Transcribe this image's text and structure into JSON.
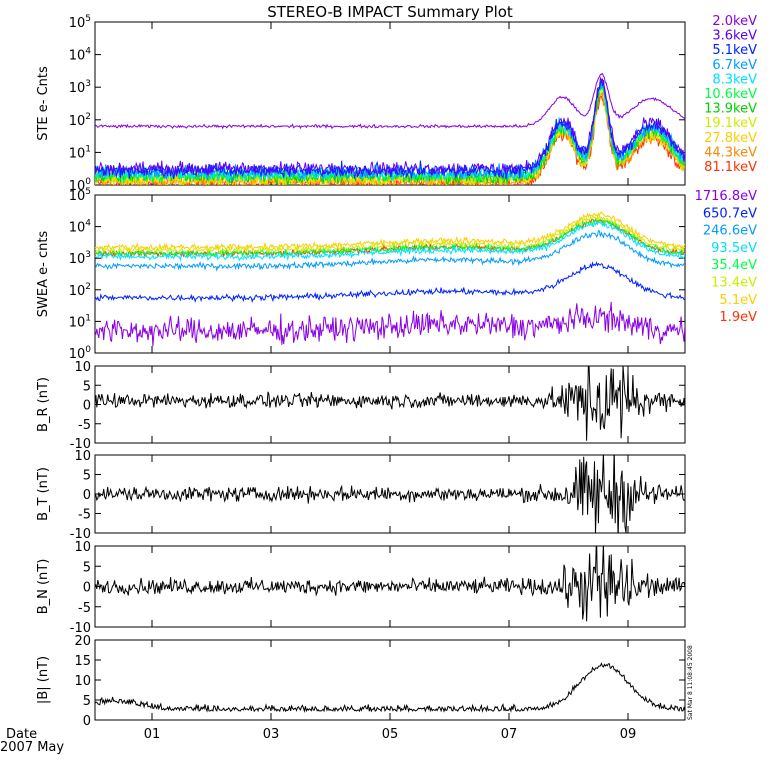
{
  "title": "STEREO-B IMPACT Summary Plot",
  "stamp": "Sat Mar  8 11:08:45 2008",
  "date_label": "Date",
  "month_label": "2007 May",
  "x_ticks": [
    "01",
    "03",
    "05",
    "07",
    "09"
  ],
  "chart_data": [
    {
      "type": "line",
      "ylabel": "STE e- Cnts",
      "yscale": "log",
      "ylim": [
        1,
        100000
      ],
      "y_ticks": [
        "10^0",
        "10^1",
        "10^2",
        "10^3",
        "10^4",
        "10^5"
      ],
      "legend": [
        {
          "label": "2.0keV",
          "color": "#8a00e6"
        },
        {
          "label": "3.6keV",
          "color": "#5a00ff"
        },
        {
          "label": "5.1keV",
          "color": "#0022ff"
        },
        {
          "label": "6.7keV",
          "color": "#009cff"
        },
        {
          "label": "8.3keV",
          "color": "#00e0ff"
        },
        {
          "label": "10.6keV",
          "color": "#00ff44"
        },
        {
          "label": "13.9keV",
          "color": "#00d000"
        },
        {
          "label": "19.1keV",
          "color": "#ccee00"
        },
        {
          "label": "27.8keV",
          "color": "#ffcc00"
        },
        {
          "label": "44.3keV",
          "color": "#ff8800"
        },
        {
          "label": "81.1keV",
          "color": "#ff3300"
        }
      ]
    },
    {
      "type": "line",
      "ylabel": "SWEA e- cnts",
      "yscale": "log",
      "ylim": [
        1,
        100000
      ],
      "y_ticks": [
        "10^0",
        "10^1",
        "10^2",
        "10^3",
        "10^4",
        "10^5"
      ],
      "legend": [
        {
          "label": "1716.8eV",
          "color": "#8a00e6"
        },
        {
          "label": "650.7eV",
          "color": "#0022ff"
        },
        {
          "label": "246.6eV",
          "color": "#009cff"
        },
        {
          "label": "93.5eV",
          "color": "#00e0ff"
        },
        {
          "label": "35.4eV",
          "color": "#00ff44"
        },
        {
          "label": "13.4eV",
          "color": "#ccee00"
        },
        {
          "label": "5.1eV",
          "color": "#ffcc00"
        },
        {
          "label": "1.9eV",
          "color": "#ff3300"
        }
      ]
    },
    {
      "type": "line",
      "ylabel": "B_R (nT)",
      "ylim": [
        -10,
        10
      ],
      "y_ticks": [
        "-10",
        "-5",
        "0",
        "5",
        "10"
      ]
    },
    {
      "type": "line",
      "ylabel": "B_T (nT)",
      "ylim": [
        -10,
        10
      ],
      "y_ticks": [
        "-10",
        "-5",
        "0",
        "5",
        "10"
      ]
    },
    {
      "type": "line",
      "ylabel": "B_N (nT)",
      "ylim": [
        -10,
        10
      ],
      "y_ticks": [
        "-10",
        "-5",
        "0",
        "5",
        "10"
      ]
    },
    {
      "type": "line",
      "ylabel": "|B| (nT)",
      "ylim": [
        0,
        20
      ],
      "y_ticks": [
        "0",
        "5",
        "10",
        "15",
        "20"
      ]
    }
  ]
}
